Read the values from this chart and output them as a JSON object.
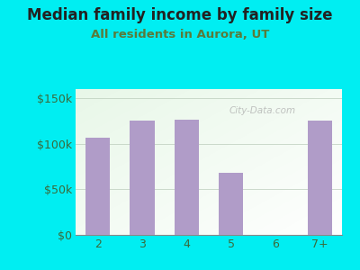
{
  "title": "Median family income by family size",
  "subtitle": "All residents in Aurora, UT",
  "categories": [
    "2",
    "3",
    "4",
    "5",
    "6",
    "7+"
  ],
  "values": [
    107000,
    125000,
    126000,
    68000,
    0,
    125000
  ],
  "bar_color": "#b09cc8",
  "background_color": "#00eef2",
  "plot_bg_color_topleft": "#d8edd8",
  "plot_bg_color_right": "#f0f8f0",
  "plot_bg_color_bottom": "#eaf5ea",
  "title_color": "#222222",
  "subtitle_color": "#5a7a3a",
  "axis_label_color": "#3a6a3a",
  "yticks": [
    0,
    50000,
    100000,
    150000
  ],
  "ytick_labels": [
    "$0",
    "$50k",
    "$100k",
    "$150k"
  ],
  "ylim": [
    0,
    160000
  ],
  "watermark": "City-Data.com",
  "watermark_color": "#aaaaaa",
  "title_fontsize": 12,
  "subtitle_fontsize": 9.5
}
